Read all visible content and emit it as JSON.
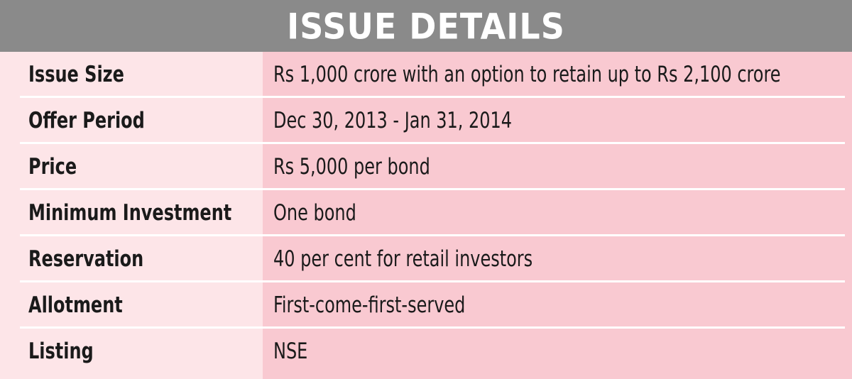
{
  "header": {
    "title": "ISSUE DETAILS"
  },
  "rows": [
    {
      "label": "Issue Size",
      "value": "Rs 1,000 crore with an option to retain up to Rs 2,100 crore"
    },
    {
      "label": "Offer Period",
      "value": "Dec 30, 2013 - Jan 31, 2014"
    },
    {
      "label": "Price",
      "value": "Rs 5,000 per bond"
    },
    {
      "label": "Minimum Investment",
      "value": "One bond"
    },
    {
      "label": "Reservation",
      "value": "40 per cent for retail investors"
    },
    {
      "label": "Allotment",
      "value": "First-come-first-served"
    },
    {
      "label": "Listing",
      "value": "NSE"
    }
  ],
  "colors": {
    "header_bg": "#8a8a8a",
    "label_column_bg": "#fde5e8",
    "value_column_bg": "#f9c9d1",
    "text": "#1a1a1a"
  }
}
